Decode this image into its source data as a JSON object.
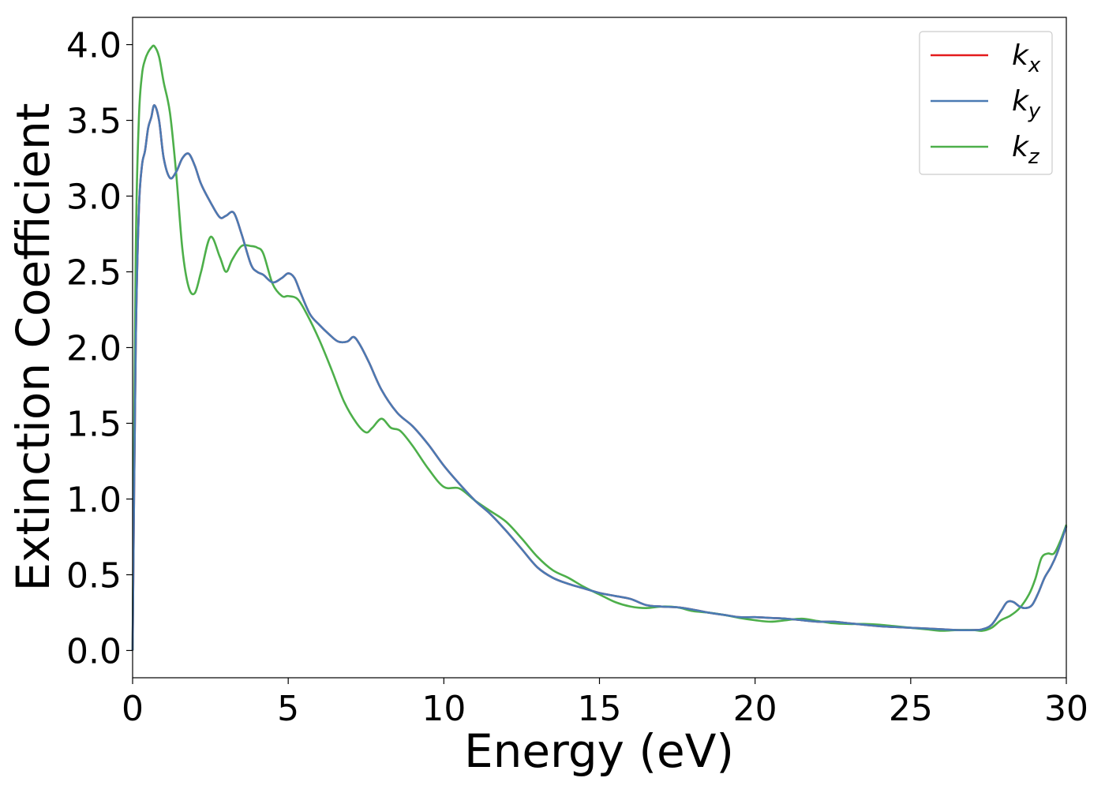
{
  "chart_data": {
    "type": "line",
    "title": "",
    "xlabel": "Energy (eV)",
    "ylabel": "Extinction Coefficient",
    "xlim": [
      0,
      30
    ],
    "ylim": [
      -0.18,
      4.18
    ],
    "xticks": [
      0,
      5,
      10,
      15,
      20,
      25,
      30
    ],
    "xtick_labels": [
      "0",
      "5",
      "10",
      "15",
      "20",
      "25",
      "30"
    ],
    "yticks": [
      0.0,
      0.5,
      1.0,
      1.5,
      2.0,
      2.5,
      3.0,
      3.5,
      4.0
    ],
    "ytick_labels": [
      "0.0",
      "0.5",
      "1.0",
      "1.5",
      "2.0",
      "2.5",
      "3.0",
      "3.5",
      "4.0"
    ],
    "grid": false,
    "legend_position": "top-right",
    "series": [
      {
        "name": "k_x",
        "legend_base": "k",
        "legend_sub": "x",
        "color": "#e41a1c",
        "x": [
          0,
          0.1,
          0.2,
          0.3,
          0.4,
          0.5,
          0.6,
          0.7,
          0.85,
          1.0,
          1.2,
          1.4,
          1.6,
          1.8,
          2.0,
          2.2,
          2.5,
          2.8,
          3.0,
          3.25,
          3.5,
          3.8,
          4.0,
          4.2,
          4.5,
          4.8,
          5.0,
          5.2,
          5.4,
          5.7,
          6.0,
          6.3,
          6.6,
          6.9,
          7.1,
          7.3,
          7.6,
          8.0,
          8.5,
          9.0,
          9.5,
          10.0,
          10.5,
          11.0,
          11.5,
          12.0,
          12.5,
          13.0,
          13.5,
          14.0,
          14.5,
          15.0,
          15.5,
          16.0,
          16.5,
          17.0,
          17.5,
          18.0,
          18.5,
          19.0,
          19.5,
          20.0,
          20.5,
          21.0,
          21.5,
          22.0,
          22.5,
          23.0,
          23.5,
          24.0,
          24.5,
          25.0,
          25.5,
          26.0,
          26.5,
          27.0,
          27.3,
          27.6,
          27.9,
          28.1,
          28.3,
          28.5,
          28.7,
          28.9,
          29.1,
          29.3,
          29.5,
          29.7,
          30.0
        ],
        "values": [
          0.0,
          2.0,
          2.9,
          3.2,
          3.3,
          3.45,
          3.52,
          3.6,
          3.5,
          3.25,
          3.12,
          3.16,
          3.25,
          3.28,
          3.2,
          3.08,
          2.96,
          2.86,
          2.87,
          2.89,
          2.75,
          2.55,
          2.5,
          2.48,
          2.43,
          2.46,
          2.49,
          2.46,
          2.36,
          2.22,
          2.15,
          2.09,
          2.04,
          2.04,
          2.07,
          2.02,
          1.9,
          1.72,
          1.57,
          1.48,
          1.36,
          1.22,
          1.1,
          0.99,
          0.9,
          0.79,
          0.67,
          0.55,
          0.48,
          0.44,
          0.41,
          0.38,
          0.36,
          0.34,
          0.3,
          0.29,
          0.285,
          0.27,
          0.25,
          0.235,
          0.22,
          0.22,
          0.215,
          0.21,
          0.2,
          0.19,
          0.19,
          0.18,
          0.17,
          0.16,
          0.155,
          0.15,
          0.145,
          0.14,
          0.135,
          0.135,
          0.14,
          0.17,
          0.26,
          0.32,
          0.32,
          0.29,
          0.28,
          0.3,
          0.38,
          0.48,
          0.55,
          0.64,
          0.82
        ]
      },
      {
        "name": "k_y",
        "legend_base": "k",
        "legend_sub": "y",
        "color": "#4a7ab3",
        "x": [
          0,
          0.1,
          0.2,
          0.3,
          0.4,
          0.5,
          0.6,
          0.7,
          0.85,
          1.0,
          1.2,
          1.4,
          1.6,
          1.8,
          2.0,
          2.2,
          2.5,
          2.8,
          3.0,
          3.25,
          3.5,
          3.8,
          4.0,
          4.2,
          4.5,
          4.8,
          5.0,
          5.2,
          5.4,
          5.7,
          6.0,
          6.3,
          6.6,
          6.9,
          7.1,
          7.3,
          7.6,
          8.0,
          8.5,
          9.0,
          9.5,
          10.0,
          10.5,
          11.0,
          11.5,
          12.0,
          12.5,
          13.0,
          13.5,
          14.0,
          14.5,
          15.0,
          15.5,
          16.0,
          16.5,
          17.0,
          17.5,
          18.0,
          18.5,
          19.0,
          19.5,
          20.0,
          20.5,
          21.0,
          21.5,
          22.0,
          22.5,
          23.0,
          23.5,
          24.0,
          24.5,
          25.0,
          25.5,
          26.0,
          26.5,
          27.0,
          27.3,
          27.6,
          27.9,
          28.1,
          28.3,
          28.5,
          28.7,
          28.9,
          29.1,
          29.3,
          29.5,
          29.7,
          30.0
        ],
        "values": [
          0.0,
          2.0,
          2.9,
          3.2,
          3.3,
          3.45,
          3.52,
          3.6,
          3.5,
          3.25,
          3.12,
          3.16,
          3.25,
          3.28,
          3.2,
          3.08,
          2.96,
          2.86,
          2.87,
          2.89,
          2.75,
          2.55,
          2.5,
          2.48,
          2.43,
          2.46,
          2.49,
          2.46,
          2.36,
          2.22,
          2.15,
          2.09,
          2.04,
          2.04,
          2.07,
          2.02,
          1.9,
          1.72,
          1.57,
          1.48,
          1.36,
          1.22,
          1.1,
          0.99,
          0.9,
          0.79,
          0.67,
          0.55,
          0.48,
          0.44,
          0.41,
          0.38,
          0.36,
          0.34,
          0.3,
          0.29,
          0.285,
          0.27,
          0.25,
          0.235,
          0.22,
          0.22,
          0.215,
          0.21,
          0.2,
          0.19,
          0.19,
          0.18,
          0.17,
          0.16,
          0.155,
          0.15,
          0.145,
          0.14,
          0.135,
          0.135,
          0.14,
          0.17,
          0.26,
          0.32,
          0.32,
          0.29,
          0.28,
          0.3,
          0.38,
          0.48,
          0.55,
          0.64,
          0.82
        ]
      },
      {
        "name": "k_z",
        "legend_base": "k",
        "legend_sub": "z",
        "color": "#4daf4a",
        "x": [
          0,
          0.1,
          0.2,
          0.3,
          0.4,
          0.5,
          0.6,
          0.7,
          0.85,
          1.0,
          1.2,
          1.4,
          1.6,
          1.8,
          2.0,
          2.2,
          2.5,
          2.8,
          3.0,
          3.2,
          3.5,
          3.8,
          4.0,
          4.2,
          4.5,
          4.8,
          5.0,
          5.3,
          5.6,
          6.0,
          6.4,
          6.8,
          7.2,
          7.5,
          7.7,
          8.0,
          8.3,
          8.6,
          9.0,
          9.5,
          10.0,
          10.5,
          11.0,
          11.5,
          12.0,
          12.5,
          13.0,
          13.5,
          14.0,
          14.5,
          15.0,
          15.5,
          16.0,
          16.5,
          17.0,
          17.5,
          18.0,
          18.5,
          19.0,
          19.5,
          20.0,
          20.5,
          21.0,
          21.5,
          22.0,
          22.5,
          23.0,
          23.5,
          24.0,
          24.5,
          25.0,
          25.5,
          26.0,
          26.5,
          27.0,
          27.3,
          27.6,
          27.9,
          28.2,
          28.5,
          28.8,
          29.0,
          29.2,
          29.4,
          29.6,
          29.8,
          30.0
        ],
        "values": [
          0.0,
          2.6,
          3.5,
          3.8,
          3.9,
          3.95,
          3.98,
          3.99,
          3.92,
          3.75,
          3.55,
          3.15,
          2.65,
          2.4,
          2.36,
          2.5,
          2.73,
          2.6,
          2.5,
          2.58,
          2.67,
          2.67,
          2.66,
          2.62,
          2.42,
          2.34,
          2.34,
          2.32,
          2.22,
          2.05,
          1.85,
          1.64,
          1.5,
          1.44,
          1.47,
          1.53,
          1.47,
          1.45,
          1.35,
          1.2,
          1.08,
          1.07,
          0.99,
          0.92,
          0.85,
          0.74,
          0.62,
          0.53,
          0.48,
          0.42,
          0.37,
          0.32,
          0.29,
          0.28,
          0.29,
          0.285,
          0.26,
          0.25,
          0.235,
          0.215,
          0.2,
          0.19,
          0.2,
          0.21,
          0.195,
          0.18,
          0.175,
          0.175,
          0.17,
          0.16,
          0.15,
          0.14,
          0.13,
          0.135,
          0.135,
          0.13,
          0.15,
          0.2,
          0.23,
          0.28,
          0.37,
          0.47,
          0.61,
          0.64,
          0.64,
          0.72,
          0.83
        ]
      }
    ]
  }
}
